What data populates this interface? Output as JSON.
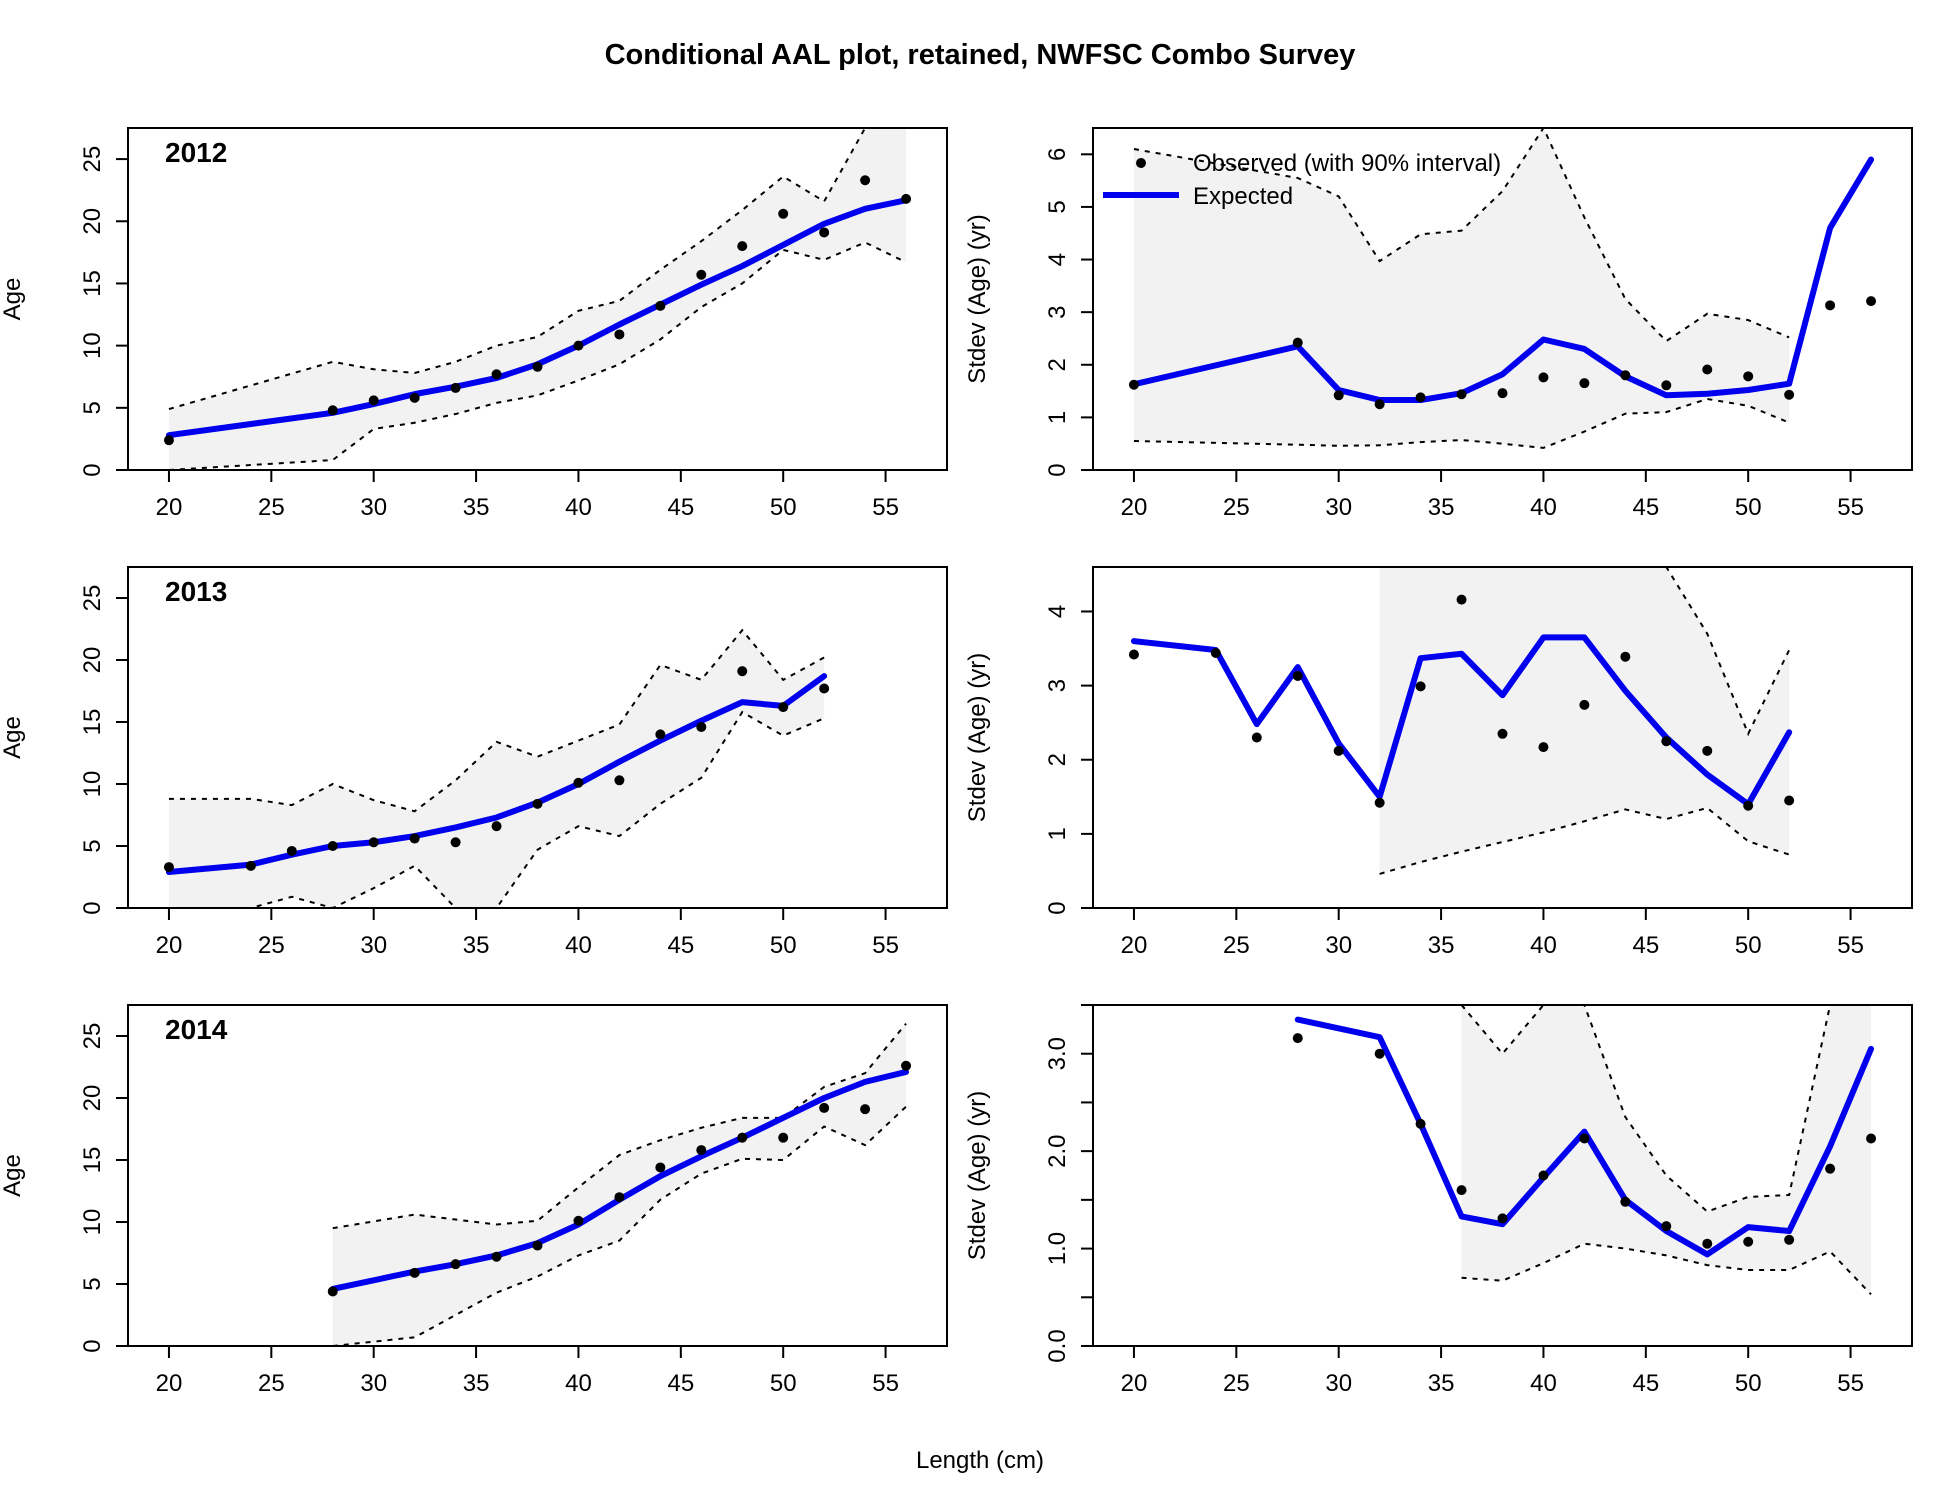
{
  "title": "Conditional AAL plot, retained, NWFSC Combo Survey",
  "shared_xlabel": "Length (cm)",
  "left_ylabel": "Age",
  "right_ylabel": "Stdev (Age) (yr)",
  "legend": {
    "observed": "Observed (with 90% interval)",
    "expected": "Expected"
  },
  "colors": {
    "expected": "#0000ee",
    "observed": "#000000",
    "band": "#f2f2f2",
    "bounds": "#000000"
  },
  "chart_data": [
    {
      "type": "line",
      "panel": "mean-age",
      "year_label": "2012",
      "xlabel": "",
      "ylabel": "Age",
      "xlim": [
        18,
        58
      ],
      "ylim": [
        0,
        27.5
      ],
      "xticks": [
        20,
        25,
        30,
        35,
        40,
        45,
        50,
        55
      ],
      "yticks": [
        0,
        5,
        10,
        15,
        20,
        25
      ],
      "grid": false,
      "x": [
        20,
        28,
        30,
        32,
        34,
        36,
        38,
        40,
        42,
        44,
        46,
        48,
        50,
        52,
        54,
        56
      ],
      "observed": [
        2.4,
        4.8,
        5.6,
        5.8,
        6.6,
        7.7,
        8.3,
        10.0,
        10.9,
        13.2,
        15.7,
        18.0,
        20.6,
        19.1,
        23.3,
        21.8
      ],
      "expected": [
        2.8,
        4.6,
        5.3,
        6.1,
        6.7,
        7.4,
        8.5,
        10.0,
        11.7,
        13.3,
        14.9,
        16.4,
        18.1,
        19.8,
        21.0,
        21.7
      ],
      "upper": [
        4.9,
        8.7,
        8.1,
        7.8,
        8.7,
        10.0,
        10.7,
        12.8,
        13.6,
        16.1,
        18.4,
        20.9,
        23.6,
        21.6,
        27.5,
        27.5
      ],
      "lower": [
        0.0,
        0.8,
        3.3,
        3.8,
        4.5,
        5.4,
        6.0,
        7.2,
        8.5,
        10.5,
        13.1,
        15.0,
        17.7,
        16.9,
        18.3,
        16.7
      ]
    },
    {
      "type": "line",
      "panel": "stdev-age",
      "year_label": "",
      "xlabel": "",
      "ylabel": "Stdev (Age) (yr)",
      "xlim": [
        18,
        58
      ],
      "ylim": [
        0,
        6.5
      ],
      "xticks": [
        20,
        25,
        30,
        35,
        40,
        45,
        50,
        55
      ],
      "yticks": [
        0,
        1,
        2,
        3,
        4,
        5,
        6
      ],
      "ytick_labels": [
        "0",
        "1",
        "2",
        "3",
        "4",
        "5",
        "6"
      ],
      "legend_position": "top-left",
      "grid": false,
      "x": [
        20,
        28,
        30,
        32,
        34,
        36,
        38,
        40,
        42,
        44,
        46,
        48,
        50,
        52,
        54,
        56
      ],
      "observed": [
        1.62,
        2.42,
        1.42,
        1.25,
        1.38,
        1.44,
        1.46,
        1.76,
        1.65,
        1.8,
        1.61,
        1.91,
        1.78,
        1.43,
        3.13,
        3.21
      ],
      "expected": [
        1.63,
        2.35,
        1.52,
        1.33,
        1.33,
        1.46,
        1.82,
        2.48,
        2.3,
        1.78,
        1.42,
        1.45,
        1.52,
        1.64,
        4.6,
        5.9
      ],
      "upper": [
        6.1,
        5.55,
        5.2,
        3.97,
        4.48,
        4.55,
        5.3,
        6.5,
        4.8,
        3.25,
        2.45,
        2.97,
        2.85,
        2.52,
        null,
        null
      ],
      "lower": [
        0.55,
        0.48,
        0.46,
        0.47,
        0.53,
        0.57,
        0.5,
        0.42,
        0.73,
        1.07,
        1.1,
        1.35,
        1.22,
        0.9,
        null,
        null
      ]
    },
    {
      "type": "line",
      "panel": "mean-age",
      "year_label": "2013",
      "xlabel": "",
      "ylabel": "Age",
      "xlim": [
        18,
        58
      ],
      "ylim": [
        0,
        27.5
      ],
      "xticks": [
        20,
        25,
        30,
        35,
        40,
        45,
        50,
        55
      ],
      "yticks": [
        0,
        5,
        10,
        15,
        20,
        25
      ],
      "grid": false,
      "x": [
        20,
        24,
        26,
        28,
        30,
        32,
        34,
        36,
        38,
        40,
        42,
        44,
        46,
        48,
        50,
        52
      ],
      "observed": [
        3.3,
        3.4,
        4.6,
        5.0,
        5.3,
        5.6,
        5.3,
        6.6,
        8.4,
        10.1,
        10.3,
        14.0,
        14.6,
        19.1,
        16.2,
        17.7
      ],
      "expected": [
        2.9,
        3.5,
        4.3,
        5.0,
        5.3,
        5.8,
        6.5,
        7.3,
        8.5,
        10.0,
        11.8,
        13.5,
        15.1,
        16.6,
        16.3,
        18.7
      ],
      "upper": [
        8.8,
        8.8,
        8.3,
        10.0,
        8.7,
        7.8,
        10.3,
        13.4,
        12.2,
        13.5,
        14.8,
        19.6,
        18.4,
        22.4,
        18.4,
        20.2
      ],
      "lower": [
        0.0,
        0.0,
        0.9,
        0.0,
        1.6,
        3.4,
        0.0,
        0.0,
        4.7,
        6.6,
        5.8,
        8.4,
        10.5,
        15.8,
        13.9,
        15.3
      ]
    },
    {
      "type": "line",
      "panel": "stdev-age",
      "year_label": "",
      "xlabel": "",
      "ylabel": "Stdev (Age) (yr)",
      "xlim": [
        18,
        58
      ],
      "ylim": [
        0,
        4.6
      ],
      "xticks": [
        20,
        25,
        30,
        35,
        40,
        45,
        50,
        55
      ],
      "yticks": [
        0,
        1,
        2,
        3,
        4
      ],
      "ytick_labels": [
        "0",
        "1",
        "2",
        "3",
        "4"
      ],
      "grid": false,
      "x": [
        20,
        24,
        26,
        28,
        30,
        32,
        34,
        36,
        38,
        40,
        42,
        44,
        46,
        48,
        50,
        52
      ],
      "observed": [
        3.42,
        3.44,
        2.3,
        3.13,
        2.12,
        1.42,
        2.99,
        4.16,
        2.35,
        2.17,
        2.74,
        3.39,
        2.25,
        2.12,
        1.38,
        1.45
      ],
      "expected": [
        3.6,
        3.48,
        2.48,
        3.25,
        2.22,
        1.5,
        3.37,
        3.43,
        2.87,
        3.65,
        3.65,
        2.93,
        2.3,
        1.8,
        1.4,
        2.37
      ],
      "upper": [
        null,
        null,
        null,
        null,
        null,
        4.6,
        4.6,
        4.6,
        4.6,
        4.6,
        4.6,
        4.6,
        4.6,
        3.7,
        2.35,
        3.48
      ],
      "lower": [
        null,
        null,
        null,
        null,
        null,
        0.46,
        0.62,
        0.76,
        0.89,
        1.02,
        1.17,
        1.33,
        1.2,
        1.35,
        0.9,
        0.72
      ]
    },
    {
      "type": "line",
      "panel": "mean-age",
      "year_label": "2014",
      "xlabel": "Length (cm)",
      "ylabel": "Age",
      "xlim": [
        18,
        58
      ],
      "ylim": [
        0,
        27.5
      ],
      "xticks": [
        20,
        25,
        30,
        35,
        40,
        45,
        50,
        55
      ],
      "yticks": [
        0,
        5,
        10,
        15,
        20,
        25
      ],
      "grid": false,
      "x": [
        28,
        32,
        34,
        36,
        38,
        40,
        42,
        44,
        46,
        48,
        50,
        52,
        54,
        56
      ],
      "observed": [
        4.4,
        5.9,
        6.6,
        7.2,
        8.1,
        10.1,
        12.0,
        14.4,
        15.8,
        16.8,
        16.8,
        19.2,
        19.1,
        22.6
      ],
      "expected": [
        4.6,
        6.0,
        6.6,
        7.3,
        8.3,
        9.8,
        11.8,
        13.7,
        15.3,
        16.8,
        18.4,
        20.0,
        21.3,
        22.1
      ],
      "upper": [
        9.5,
        10.6,
        10.2,
        9.8,
        10.1,
        12.8,
        15.4,
        16.6,
        17.6,
        18.4,
        18.4,
        20.9,
        22.0,
        26.0
      ],
      "lower": [
        0.0,
        0.7,
        2.5,
        4.3,
        5.6,
        7.3,
        8.5,
        11.8,
        13.9,
        15.1,
        15.0,
        17.7,
        16.2,
        19.3
      ]
    },
    {
      "type": "line",
      "panel": "stdev-age",
      "year_label": "",
      "xlabel": "Length (cm)",
      "ylabel": "Stdev (Age) (yr)",
      "xlim": [
        18,
        58
      ],
      "ylim": [
        0,
        3.5
      ],
      "xticks": [
        20,
        25,
        30,
        35,
        40,
        45,
        50,
        55
      ],
      "yticks": [
        0,
        0.5,
        1,
        1.5,
        2,
        2.5,
        3,
        3.5
      ],
      "ytick_labels": [
        "0.0",
        "",
        "1.0",
        "",
        "2.0",
        "",
        "3.0",
        ""
      ],
      "grid": false,
      "x": [
        28,
        32,
        34,
        36,
        38,
        40,
        42,
        44,
        46,
        48,
        50,
        52,
        54,
        56
      ],
      "observed": [
        3.16,
        3.0,
        2.28,
        1.6,
        1.31,
        1.75,
        2.13,
        1.48,
        1.23,
        1.05,
        1.07,
        1.09,
        1.82,
        2.13
      ],
      "expected": [
        3.35,
        3.17,
        2.28,
        1.33,
        1.25,
        1.73,
        2.2,
        1.5,
        1.18,
        0.94,
        1.22,
        1.18,
        2.05,
        3.05
      ],
      "upper": [
        null,
        null,
        null,
        3.5,
        3.0,
        3.5,
        3.5,
        2.35,
        1.75,
        1.38,
        1.53,
        1.55,
        3.5,
        3.5
      ],
      "lower": [
        null,
        null,
        null,
        0.7,
        0.67,
        0.85,
        1.05,
        1.0,
        0.93,
        0.83,
        0.78,
        0.78,
        0.97,
        0.53
      ]
    }
  ]
}
